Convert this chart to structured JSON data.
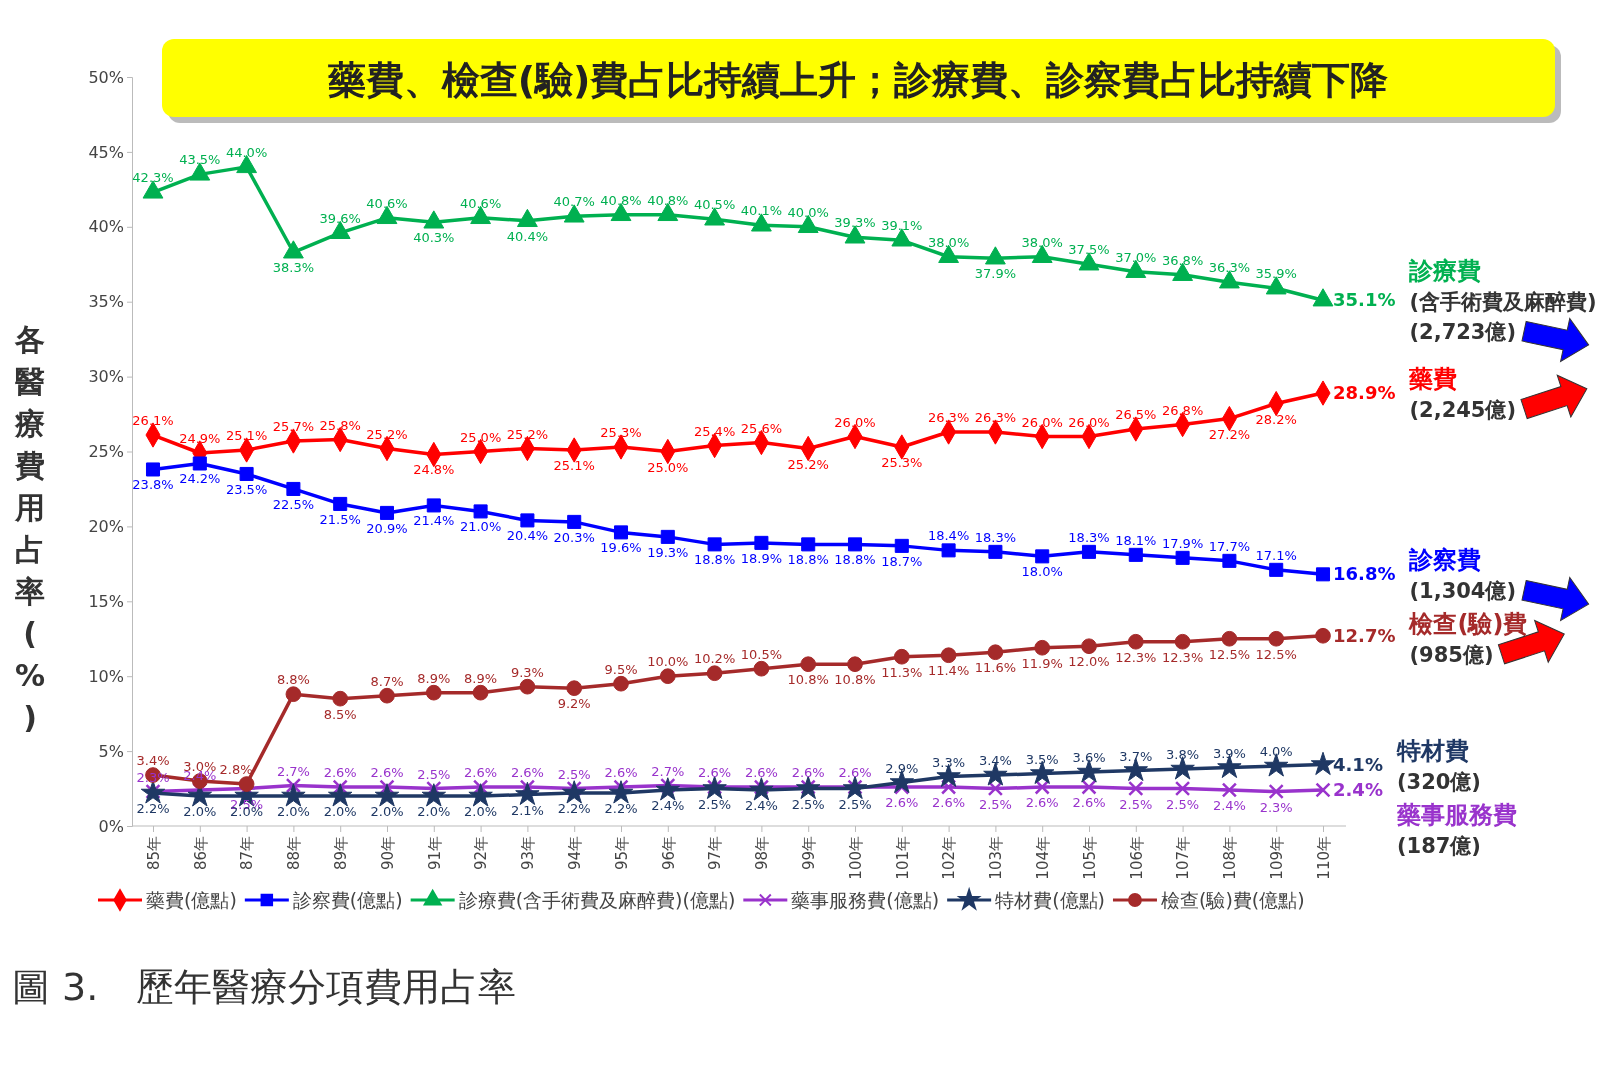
{
  "chart_data": {
    "type": "line",
    "title": "藥費、檢查(驗)費占比持續上升；診療費、診察費占比持續下降",
    "ylabel": "各醫療費用占率(%)",
    "categories": [
      "85年",
      "86年",
      "87年",
      "88年",
      "89年",
      "90年",
      "91年",
      "92年",
      "93年",
      "94年",
      "95年",
      "96年",
      "97年",
      "98年",
      "99年",
      "100年",
      "101年",
      "102年",
      "103年",
      "104年",
      "105年",
      "106年",
      "107年",
      "108年",
      "109年",
      "110年"
    ],
    "ylim": [
      0,
      50
    ],
    "yticks": [
      {
        "value": 0,
        "label": "0%"
      },
      {
        "value": 5,
        "label": "5%"
      },
      {
        "value": 10,
        "label": "10%"
      },
      {
        "value": 15,
        "label": "15%"
      },
      {
        "value": 20,
        "label": "20%"
      },
      {
        "value": 25,
        "label": "25%"
      },
      {
        "value": 30,
        "label": "30%"
      },
      {
        "value": 35,
        "label": "35%"
      },
      {
        "value": 40,
        "label": "40%"
      },
      {
        "value": 45,
        "label": "45%"
      },
      {
        "value": 50,
        "label": "50%"
      }
    ],
    "legend": "bottom",
    "series": [
      {
        "name": "藥費(億點)",
        "color": "#ff0000",
        "marker": "diamond",
        "values": [
          26.1,
          24.9,
          25.1,
          25.7,
          25.8,
          25.2,
          24.8,
          25.0,
          25.2,
          25.1,
          25.3,
          25.0,
          25.4,
          25.6,
          25.2,
          26.0,
          25.3,
          26.3,
          26.3,
          26.0,
          26.0,
          26.5,
          26.8,
          27.2,
          28.2,
          28.9
        ],
        "value_labels": [
          "26.1%",
          "24.9%",
          "25.1%",
          "25.7%",
          "25.8%",
          "25.2%",
          "24.8%",
          "25.0%",
          "25.2%",
          "25.1%",
          "25.3%",
          "25.0%",
          "25.4%",
          "25.6%",
          "25.2%",
          "26.0%",
          "25.3%",
          "26.3%",
          "26.3%",
          "26.0%",
          "26.0%",
          "26.5%",
          "26.8%",
          "27.2%",
          "28.2%",
          "28.9%"
        ]
      },
      {
        "name": "診察費(億點)",
        "color": "#0000ff",
        "marker": "square",
        "values": [
          23.8,
          24.2,
          23.5,
          22.5,
          21.5,
          20.9,
          21.4,
          21.0,
          20.4,
          20.3,
          19.6,
          19.3,
          18.8,
          18.9,
          18.8,
          18.8,
          18.7,
          18.4,
          18.3,
          18.0,
          18.3,
          18.1,
          17.9,
          17.7,
          17.1,
          16.8
        ],
        "value_labels": [
          "23.8%",
          "24.2%",
          "23.5%",
          "22.5%",
          "21.5%",
          "20.9%",
          "21.4%",
          "21.0%",
          "20.4%",
          "20.3%",
          "19.6%",
          "19.3%",
          "18.8%",
          "18.9%",
          "18.8%",
          "18.8%",
          "18.7%",
          "18.4%",
          "18.3%",
          "18.0%",
          "18.3%",
          "18.1%",
          "17.9%",
          "17.7%",
          "17.1%",
          "16.8%"
        ]
      },
      {
        "name": "診療費(含手術費及麻醉費)(億點)",
        "color": "#00b050",
        "marker": "triangle",
        "values": [
          42.3,
          43.5,
          44.0,
          38.3,
          39.6,
          40.6,
          40.3,
          40.6,
          40.4,
          40.7,
          40.8,
          40.8,
          40.5,
          40.1,
          40.0,
          39.3,
          39.1,
          38.0,
          37.9,
          38.0,
          37.5,
          37.0,
          36.8,
          36.3,
          35.9,
          35.1
        ],
        "value_labels": [
          "42.3%",
          "43.5%",
          "44.0%",
          "38.3%",
          "39.6%",
          "40.6%",
          "40.3%",
          "40.6%",
          "40.4%",
          "40.7%",
          "40.8%",
          "40.8%",
          "40.5%",
          "40.1%",
          "40.0%",
          "39.3%",
          "39.1%",
          "38.0%",
          "37.9%",
          "38.0%",
          "37.5%",
          "37.0%",
          "36.8%",
          "36.3%",
          "35.9%",
          "35.1%"
        ]
      },
      {
        "name": "藥事服務費(億點)",
        "color": "#9933cc",
        "marker": "cross",
        "values": [
          2.3,
          2.4,
          2.5,
          2.7,
          2.6,
          2.6,
          2.5,
          2.6,
          2.6,
          2.5,
          2.6,
          2.7,
          2.6,
          2.6,
          2.6,
          2.6,
          2.6,
          2.6,
          2.5,
          2.6,
          2.6,
          2.5,
          2.5,
          2.4,
          2.3,
          2.4
        ],
        "value_labels": [
          "2.3%",
          "2.4%",
          "2.5%",
          "2.7%",
          "2.6%",
          "2.6%",
          "2.5%",
          "2.6%",
          "2.6%",
          "2.5%",
          "2.6%",
          "2.7%",
          "2.6%",
          "2.6%",
          "2.6%",
          "2.6%",
          "2.6%",
          "2.6%",
          "2.5%",
          "2.6%",
          "2.6%",
          "2.5%",
          "2.5%",
          "2.4%",
          "2.3%",
          "2.4%"
        ]
      },
      {
        "name": "特材費(億點)",
        "color": "#1f3864",
        "marker": "star",
        "values": [
          2.2,
          2.0,
          2.0,
          2.0,
          2.0,
          2.0,
          2.0,
          2.0,
          2.1,
          2.2,
          2.2,
          2.4,
          2.5,
          2.4,
          2.5,
          2.5,
          2.9,
          3.3,
          3.4,
          3.5,
          3.6,
          3.7,
          3.8,
          3.9,
          4.0,
          4.1
        ],
        "value_labels": [
          "2.2%",
          "2.0%",
          "2.0%",
          "2.0%",
          "2.0%",
          "2.0%",
          "2.0%",
          "2.0%",
          "2.1%",
          "2.2%",
          "2.2%",
          "2.4%",
          "2.5%",
          "2.4%",
          "2.5%",
          "2.5%",
          "2.9%",
          "3.3%",
          "3.4%",
          "3.5%",
          "3.6%",
          "3.7%",
          "3.8%",
          "3.9%",
          "4.0%",
          "4.1%"
        ]
      },
      {
        "name": "檢查(驗)費(億點)",
        "color": "#a52a2a",
        "marker": "circle",
        "values": [
          3.4,
          3.0,
          2.8,
          8.8,
          8.5,
          8.7,
          8.9,
          8.9,
          9.3,
          9.2,
          9.5,
          10.0,
          10.2,
          10.5,
          10.8,
          10.8,
          11.3,
          11.4,
          11.6,
          11.9,
          12.0,
          12.3,
          12.3,
          12.5,
          12.5,
          12.7
        ],
        "value_labels": [
          "3.4%",
          "3.0%",
          "2.8%",
          "8.8%",
          "8.5%",
          "8.7%",
          "8.9%",
          "8.9%",
          "9.3%",
          "9.2%",
          "9.5%",
          "10.0%",
          "10.2%",
          "10.5%",
          "10.8%",
          "10.8%",
          "11.3%",
          "11.4%",
          "11.6%",
          "11.9%",
          "12.0%",
          "12.3%",
          "12.3%",
          "12.5%",
          "12.5%",
          "12.7%"
        ]
      }
    ],
    "annotations": [
      "診療費\n(含手術費及麻醉費)\n(2,723億)",
      "藥費\n(2,245億)",
      "診察費\n(1,304億)",
      "檢查(驗)費\n(985億)",
      "特材費\n(320億)",
      "藥事服務費\n(187億)",
      "圖 3.　歷年醫療分項費用占率"
    ]
  }
}
